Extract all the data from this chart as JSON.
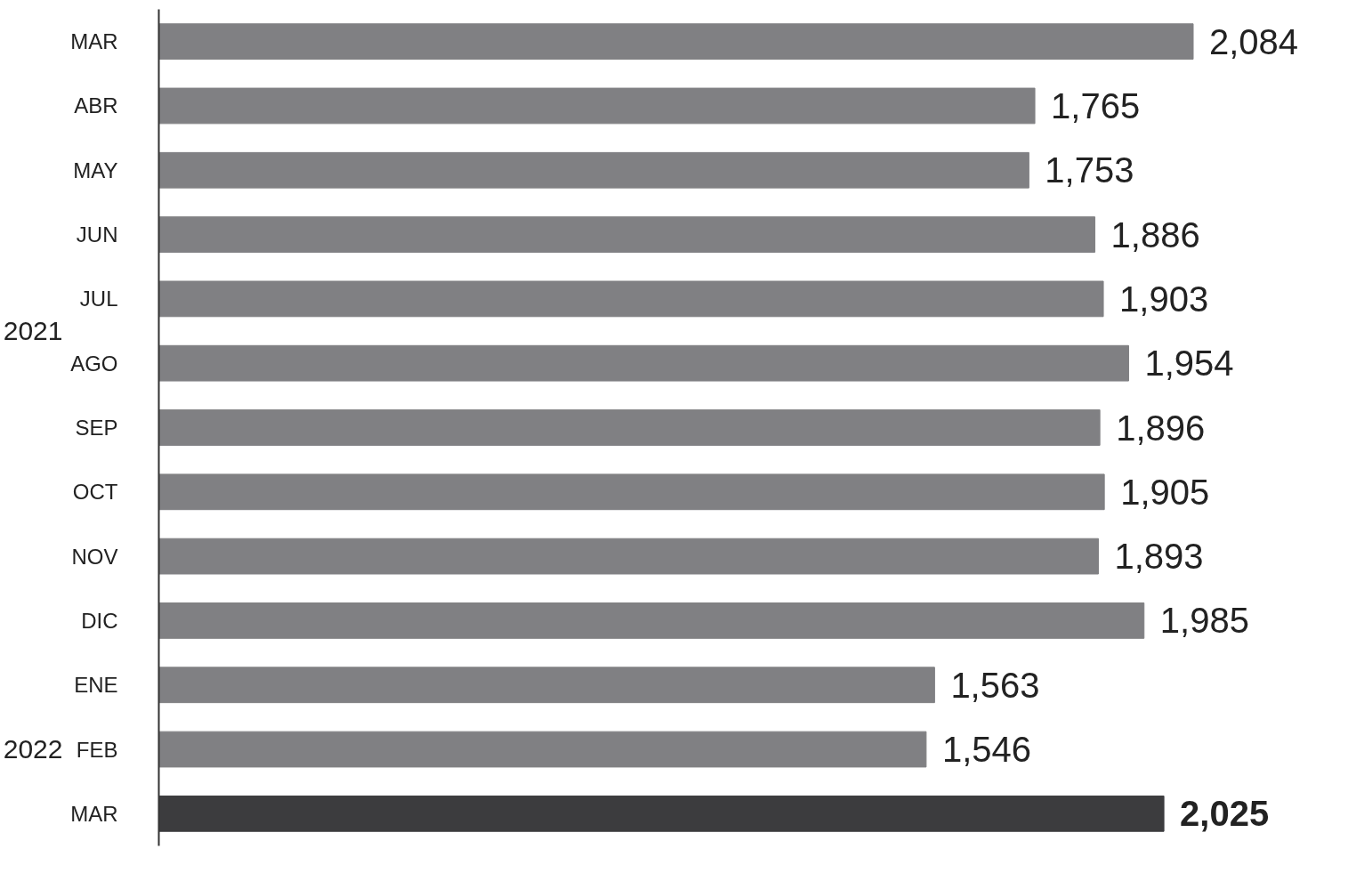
{
  "chart_data": {
    "type": "bar",
    "orientation": "horizontal",
    "categories": [
      "MAR",
      "ABR",
      "MAY",
      "JUN",
      "JUL",
      "AGO",
      "SEP",
      "OCT",
      "NOV",
      "DIC",
      "ENE",
      "FEB",
      "MAR"
    ],
    "values": [
      2084,
      1765,
      1753,
      1886,
      1903,
      1954,
      1896,
      1905,
      1893,
      1985,
      1563,
      1546,
      2025
    ],
    "value_labels": [
      "2,084",
      "1,765",
      "1,753",
      "1,886",
      "1,903",
      "1,954",
      "1,896",
      "1,905",
      "1,893",
      "1,985",
      "1,563",
      "1,546",
      "2,025"
    ],
    "colors": [
      "#808083",
      "#808083",
      "#808083",
      "#808083",
      "#808083",
      "#808083",
      "#808083",
      "#808083",
      "#808083",
      "#808083",
      "#808083",
      "#808083",
      "#3c3c3e"
    ],
    "tick_labels": "y",
    "grid": false,
    "annotations": [
      "2021",
      "2022"
    ]
  }
}
